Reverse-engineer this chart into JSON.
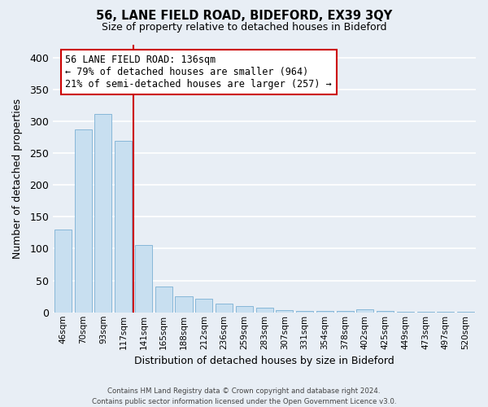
{
  "title1": "56, LANE FIELD ROAD, BIDEFORD, EX39 3QY",
  "title2": "Size of property relative to detached houses in Bideford",
  "xlabel": "Distribution of detached houses by size in Bideford",
  "ylabel": "Number of detached properties",
  "bar_labels": [
    "46sqm",
    "70sqm",
    "93sqm",
    "117sqm",
    "141sqm",
    "165sqm",
    "188sqm",
    "212sqm",
    "236sqm",
    "259sqm",
    "283sqm",
    "307sqm",
    "331sqm",
    "354sqm",
    "378sqm",
    "402sqm",
    "425sqm",
    "449sqm",
    "473sqm",
    "497sqm",
    "520sqm"
  ],
  "bar_values": [
    130,
    287,
    312,
    269,
    106,
    41,
    25,
    22,
    14,
    10,
    8,
    3,
    2,
    2,
    2,
    5,
    2,
    1,
    1,
    1,
    1
  ],
  "bar_color": "#c8dff0",
  "bar_edgecolor": "#7ab0d4",
  "vline_color": "#cc0000",
  "vline_x_index": 3.5,
  "annotation_text": "56 LANE FIELD ROAD: 136sqm\n← 79% of detached houses are smaller (964)\n21% of semi-detached houses are larger (257) →",
  "annotation_box_edgecolor": "#cc0000",
  "annotation_fontsize": 8.5,
  "ylim": [
    0,
    420
  ],
  "yticks": [
    0,
    50,
    100,
    150,
    200,
    250,
    300,
    350,
    400
  ],
  "footer_text": "Contains HM Land Registry data © Crown copyright and database right 2024.\nContains public sector information licensed under the Open Government Licence v3.0.",
  "background_color": "#e8eef5",
  "plot_bg_color": "#e8eef5",
  "grid_color": "#ffffff"
}
